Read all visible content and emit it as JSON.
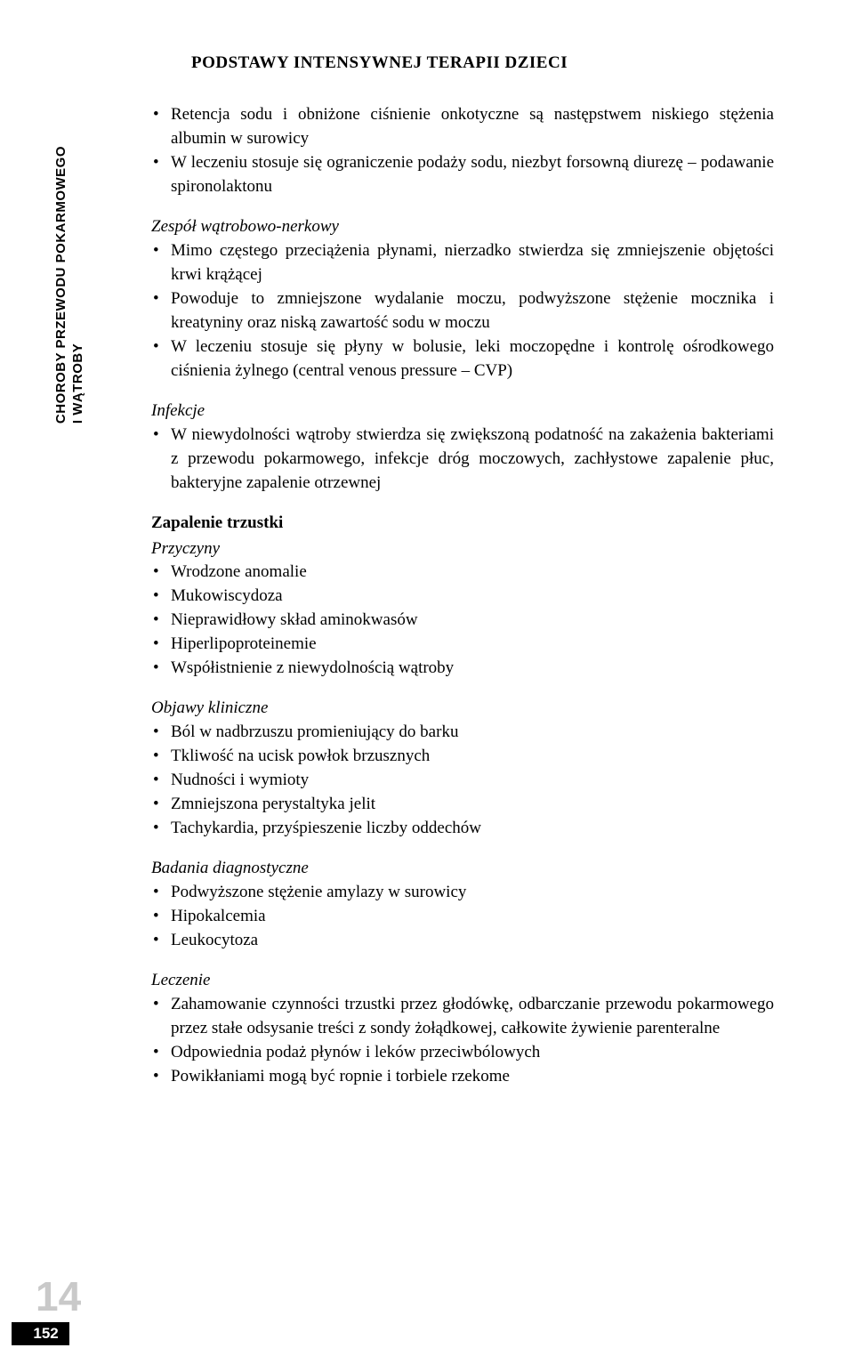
{
  "header": {
    "title": "PODSTAWY INTENSYWNEJ TERAPII DZIECI"
  },
  "sideTab": {
    "line1": "CHOROBY PRZEWODU POKARMOWEGO",
    "line2": "I WĄTROBY"
  },
  "sections": {
    "intro": {
      "b1": "Retencja sodu i obniżone ciśnienie onkotyczne są następstwem niskiego stężenia albumin w surowicy",
      "b2": "W leczeniu stosuje się ograniczenie podaży sodu, niezbyt forsowną diurezę – podawanie spironolaktonu"
    },
    "zespol": {
      "title": "Zespół wątrobowo-nerkowy",
      "b1": "Mimo częstego przeciążenia płynami, nierzadko stwierdza się zmniejszenie objętości krwi krążącej",
      "b2": "Powoduje to zmniejszone wydalanie moczu, podwyższone stężenie mocznika i kreatyniny oraz niską zawartość sodu w moczu",
      "b3": "W leczeniu stosuje się płyny w bolusie, leki moczopędne i kontrolę ośrodkowego ciśnienia żylnego (central venous pressure – CVP)"
    },
    "infekcje": {
      "title": "Infekcje",
      "b1": "W niewydolności wątroby stwierdza się zwiększoną podatność na zakażenia bakteriami z przewodu pokarmowego, infekcje dróg moczowych, zachłystowe zapalenie płuc, bakteryjne zapalenie otrzewnej"
    },
    "zapalenie": {
      "title": "Zapalenie trzustki",
      "przyczyny_title": "Przyczyny",
      "p1": "Wrodzone anomalie",
      "p2": "Mukowiscydoza",
      "p3": "Nieprawidłowy skład aminokwasów",
      "p4": "Hiperlipoproteinemie",
      "p5": "Współistnienie z niewydolnością wątroby"
    },
    "objawy": {
      "title": "Objawy kliniczne",
      "b1": "Ból w nadbrzuszu promieniujący do barku",
      "b2": "Tkliwość na ucisk powłok brzusznych",
      "b3": "Nudności i wymioty",
      "b4": "Zmniejszona perystaltyka jelit",
      "b5": "Tachykardia, przyśpieszenie liczby oddechów"
    },
    "badania": {
      "title": "Badania diagnostyczne",
      "b1": "Podwyższone stężenie amylazy w surowicy",
      "b2": "Hipokalcemia",
      "b3": "Leukocytoza"
    },
    "leczenie": {
      "title": "Leczenie",
      "b1": "Zahamowanie czynności trzustki przez głodówkę, odbarczanie przewodu pokarmowego przez stałe odsysanie treści z sondy żołądkowej, całkowite żywienie parenteralne",
      "b2": "Odpowiednia podaż płynów i leków przeciwbólowych",
      "b3": "Powikłaniami mogą być ropnie i torbiele rzekome"
    }
  },
  "footer": {
    "chapter": "14",
    "page": "152"
  },
  "style": {
    "bg": "#ffffff",
    "text": "#000000",
    "chapterNumColor": "#c9c9c9",
    "pageNumBg": "#000000",
    "pageNumText": "#ffffff"
  }
}
